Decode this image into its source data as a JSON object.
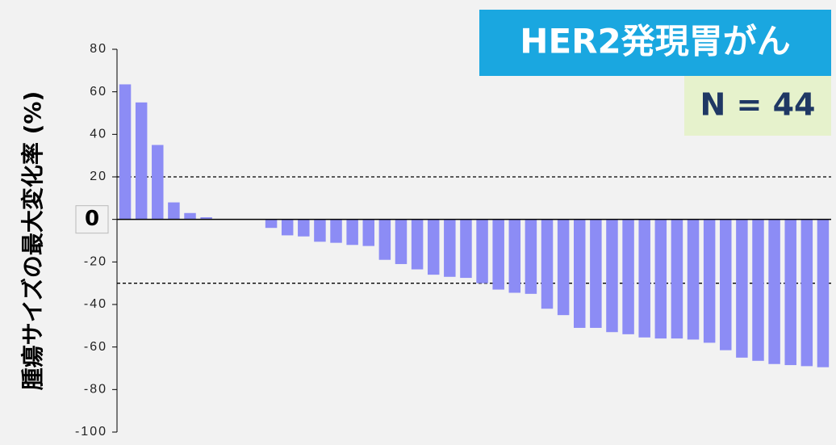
{
  "chart_data": {
    "type": "bar",
    "title": "HER2発現胃がん",
    "annotation": "N = 44",
    "y_label": "腫瘍サイズの最大変化率 (%)",
    "color": "#8c8cf5",
    "values": [
      63.5,
      55,
      35,
      8,
      3,
      1,
      0,
      0,
      0,
      -4,
      -7.5,
      -8,
      -10.5,
      -11,
      -12,
      -12.5,
      -19,
      -21,
      -23.5,
      -26,
      -27,
      -27.5,
      -30,
      -33,
      -34.5,
      -35,
      -42,
      -45,
      -51,
      -51,
      -53,
      -54,
      -55.5,
      -56,
      -56,
      -56.5,
      -58,
      -61.5,
      -65,
      -66.5,
      -68,
      -68.5,
      -69,
      -69.5
    ],
    "ylim": [
      -100,
      80
    ],
    "yticks": [
      80,
      60,
      40,
      20,
      0,
      -20,
      -40,
      -60,
      -80,
      -100
    ],
    "reference_lines": [
      20,
      -30
    ]
  }
}
